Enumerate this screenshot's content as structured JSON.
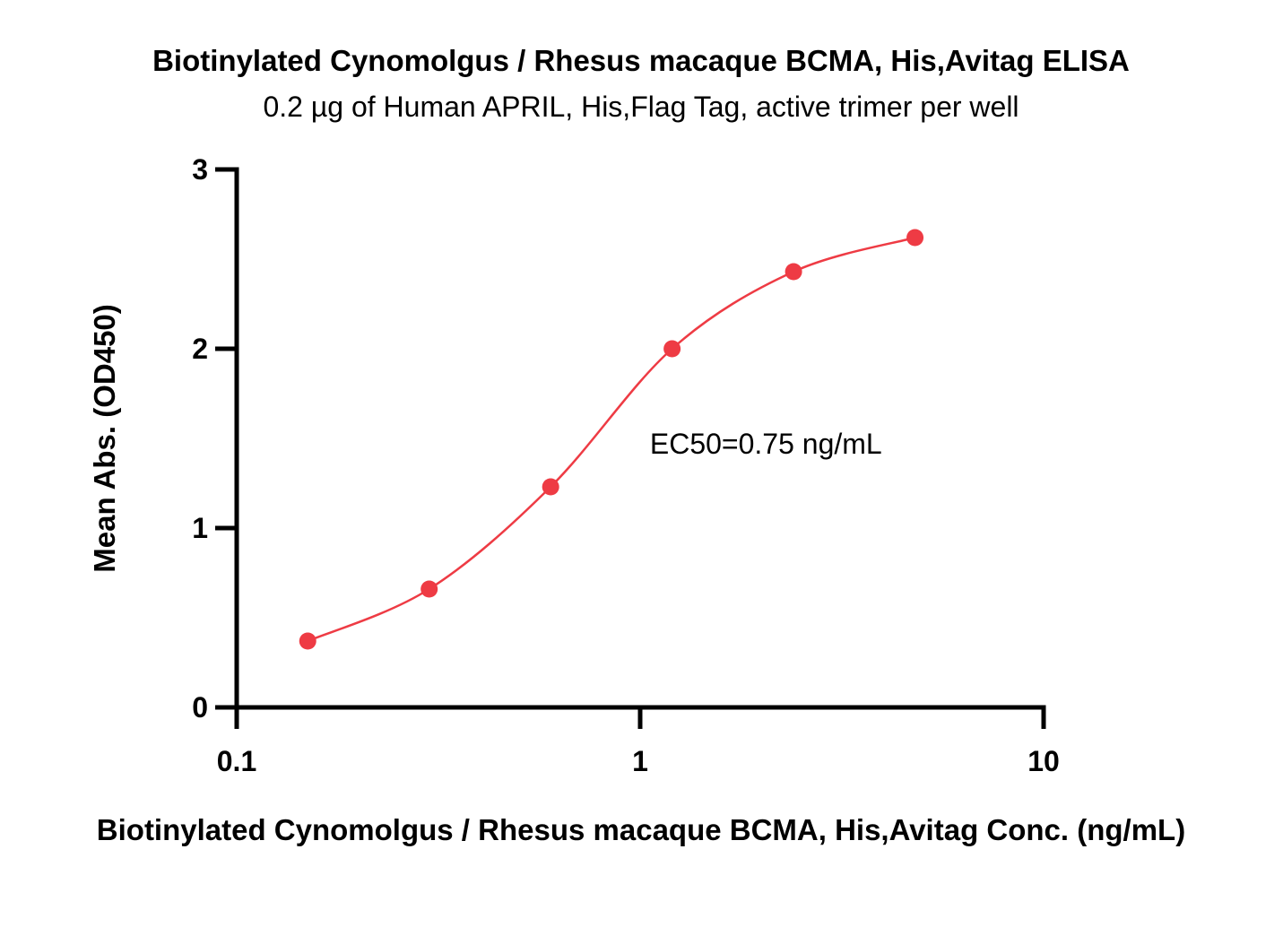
{
  "chart_data": {
    "type": "scatter",
    "title": "Biotinylated Cynomolgus / Rhesus macaque BCMA, His,Avitag ELISA",
    "subtitle": "0.2 µg of Human APRIL, His,Flag Tag, active trimer per well",
    "xlabel": "Biotinylated Cynomolgus / Rhesus macaque BCMA, His,Avitag Conc. (ng/mL)",
    "ylabel": "Mean Abs. (OD450)",
    "x_scale": "log",
    "xlim": [
      0.1,
      10
    ],
    "ylim": [
      0,
      3
    ],
    "x_ticks": [
      0.1,
      1,
      10
    ],
    "x_tick_labels": [
      "0.1",
      "1",
      "10"
    ],
    "y_ticks": [
      0,
      1,
      2,
      3
    ],
    "y_tick_labels": [
      "0",
      "1",
      "2",
      "3"
    ],
    "grid": false,
    "legend": "none",
    "series": [
      {
        "x": [
          0.15,
          0.3,
          0.6,
          1.2,
          2.4,
          4.8
        ],
        "y": [
          0.37,
          0.66,
          1.23,
          2.0,
          2.43,
          2.62
        ],
        "color": "#ee3b44",
        "fit": "4PL"
      }
    ],
    "annotations": [
      {
        "text": "EC50=0.75 ng/mL",
        "x": 2.05,
        "y": 1.47
      }
    ]
  }
}
